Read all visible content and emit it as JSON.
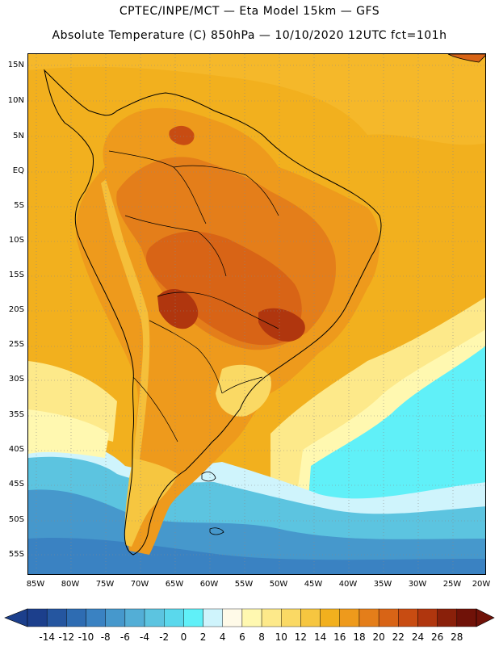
{
  "header": {
    "line1": "CPTEC/INPE/MCT —  Eta Model 15km — GFS",
    "line2": "Absolute Temperature (C) 850hPa — 10/10/2020 12UTC fct=101h"
  },
  "latitudes": [
    "15N",
    "10N",
    "5N",
    "EQ",
    "5S",
    "10S",
    "15S",
    "20S",
    "25S",
    "30S",
    "35S",
    "40S",
    "45S",
    "50S",
    "55S"
  ],
  "longitudes": [
    "85W",
    "80W",
    "75W",
    "70W",
    "65W",
    "60W",
    "55W",
    "50W",
    "45W",
    "40W",
    "35W",
    "30W",
    "25W",
    "20W"
  ],
  "colorbar": {
    "labels": [
      "-14",
      "-12",
      "-10",
      "-8",
      "-6",
      "-4",
      "-2",
      "0",
      "2",
      "4",
      "6",
      "8",
      "10",
      "12",
      "14",
      "16",
      "18",
      "20",
      "22",
      "24",
      "26",
      "28"
    ],
    "colors": [
      "#1c3f8c",
      "#2556a0",
      "#2e6cb2",
      "#3a82c2",
      "#4698cc",
      "#53aed6",
      "#5cc4e0",
      "#5ad8ec",
      "#60f0f8",
      "#cff4fc",
      "#fffae8",
      "#fff8b0",
      "#fde98a",
      "#fad964",
      "#f6c640",
      "#f2b01e",
      "#ee9a1c",
      "#e47e1a",
      "#d86416",
      "#c84c12",
      "#b0360e",
      "#8a200a",
      "#701208"
    ]
  },
  "palette": {
    "ocean_cold": "#4698cc",
    "ocean_cool": "#5ac4e0",
    "ocean_mild": "#60f0f8",
    "ocean_warm": "#f2b01e",
    "land_hot": "#d86416",
    "land_very_hot": "#b0360e",
    "andes_cool": "#fad964",
    "coast": "#000000",
    "grid": "#888888"
  }
}
